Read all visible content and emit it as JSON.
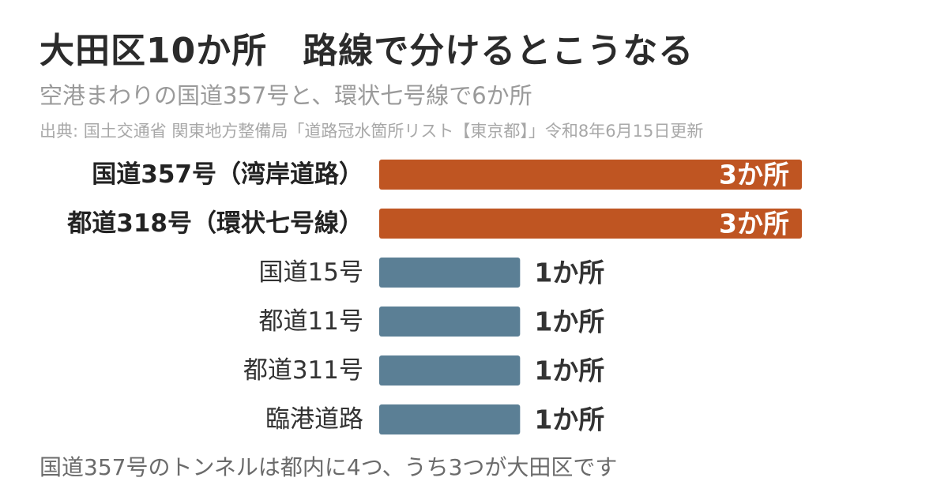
{
  "title": "大田区10か所　路線で分けるとこうなる",
  "subtitle": "空港まわりの国道357号と、環状七号線で6か所",
  "source": "出典: 国土交通省 関東地方整備局「道路冠水箇所リスト【東京都】」令和8年6月15日更新",
  "footnote": "国道357号のトンネルは都内に4つ、うち3つが大田区です",
  "colors": {
    "highlight": "#bf5522",
    "normal": "#5b7f95"
  },
  "chart_data": {
    "type": "bar",
    "orientation": "horizontal",
    "categories": [
      "国道357号（湾岸道路）",
      "都道318号（環状七号線）",
      "国道15号",
      "都道11号",
      "都道311号",
      "臨港道路"
    ],
    "values": [
      3,
      3,
      1,
      1,
      1,
      1
    ],
    "value_labels": [
      "3か所",
      "3か所",
      "1か所",
      "1か所",
      "1か所",
      "1か所"
    ],
    "highlighted": [
      true,
      true,
      false,
      false,
      false,
      false
    ],
    "xlim": [
      0,
      3
    ],
    "title": "",
    "xlabel": "",
    "ylabel": ""
  }
}
